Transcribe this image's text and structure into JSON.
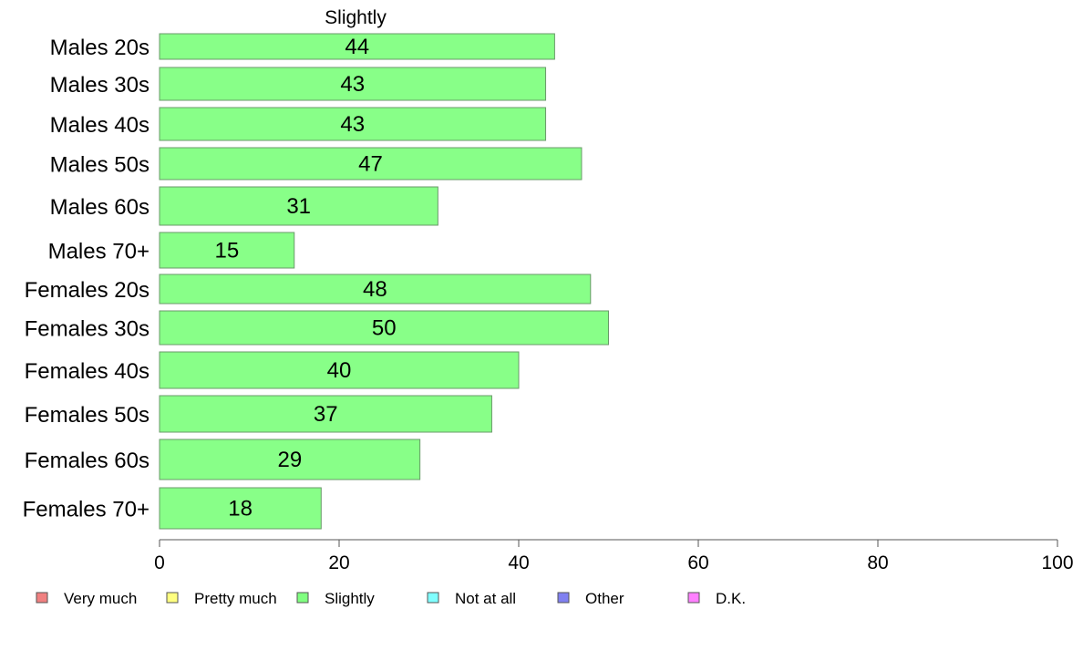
{
  "chart_data": {
    "type": "bar",
    "orientation": "horizontal",
    "title": "Slightly",
    "categories": [
      "Males 20s",
      "Males 30s",
      "Males 40s",
      "Males 50s",
      "Males 60s",
      "Males 70+",
      "Females 20s",
      "Females 30s",
      "Females 40s",
      "Females 50s",
      "Females 60s",
      "Females 70+"
    ],
    "values": [
      44,
      43,
      43,
      47,
      31,
      15,
      48,
      50,
      40,
      37,
      29,
      18
    ],
    "data_labels": [
      "44",
      "43",
      "43",
      "47",
      "31",
      "15",
      "48",
      "50",
      "40",
      "37",
      "29",
      "18"
    ],
    "xlim": [
      0,
      100
    ],
    "x_ticks": [
      0,
      20,
      40,
      60,
      80,
      100
    ],
    "x_tick_labels": [
      "0",
      "20",
      "40",
      "60",
      "80",
      "100"
    ],
    "xlabel": "",
    "ylabel": "",
    "grid": false,
    "bar_color": "#88ff88",
    "bar_border_color": "#6a9a6a",
    "legend": {
      "placement": "bottom",
      "entries": [
        {
          "label": "Very much",
          "color": "#f08080"
        },
        {
          "label": "Pretty much",
          "color": "#ffff80"
        },
        {
          "label": "Slightly",
          "color": "#80ff80"
        },
        {
          "label": "Not at all",
          "color": "#80ffff"
        },
        {
          "label": "Other",
          "color": "#8080f0"
        },
        {
          "label": "D.K.",
          "color": "#ff80ff"
        }
      ]
    }
  }
}
